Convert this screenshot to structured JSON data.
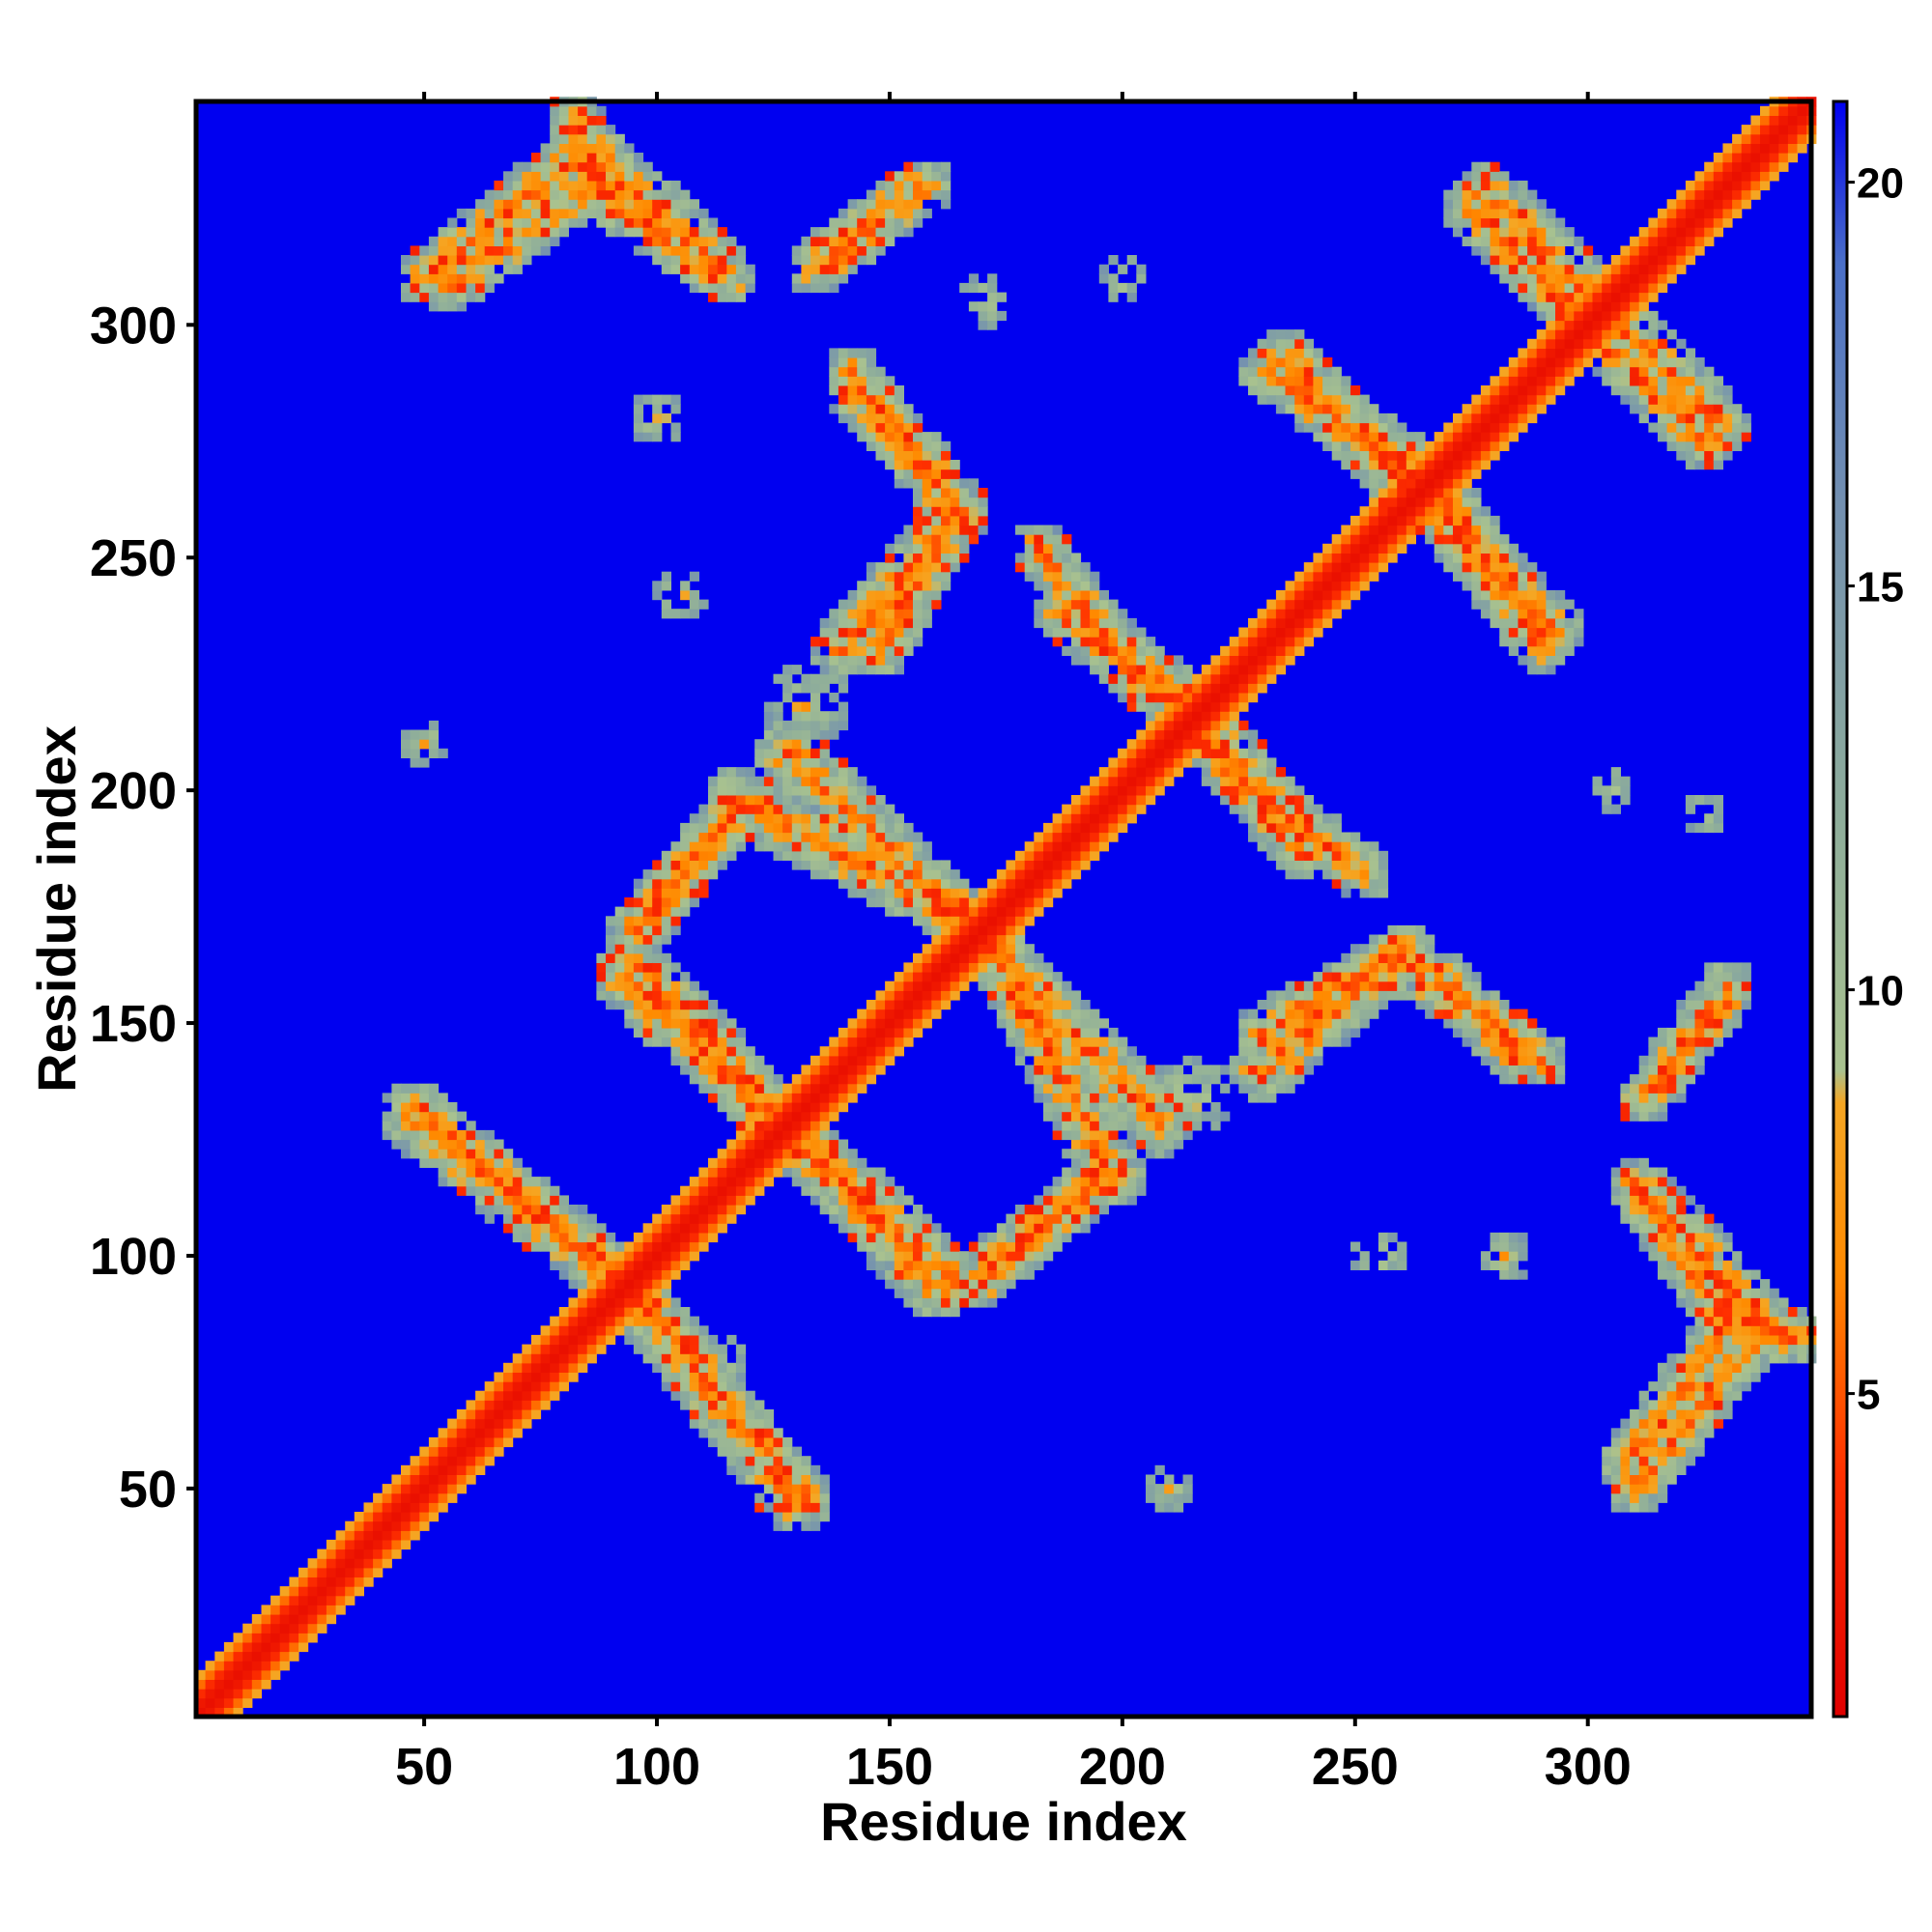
{
  "chart_data": {
    "type": "heatmap",
    "title": "",
    "xlabel": "Residue index",
    "ylabel": "Residue index",
    "xlim": [
      1,
      348
    ],
    "ylim": [
      1,
      348
    ],
    "xticks": [
      50,
      100,
      150,
      200,
      250,
      300
    ],
    "yticks": [
      50,
      100,
      150,
      200,
      250,
      300
    ],
    "colorbar": {
      "range": [
        1,
        21
      ],
      "ticks": [
        5,
        10,
        15,
        20
      ],
      "color_stops": [
        {
          "value": 1,
          "color": "#e00000"
        },
        {
          "value": 4,
          "color": "#ff3000"
        },
        {
          "value": 6.5,
          "color": "#ff8a00"
        },
        {
          "value": 8.6,
          "color": "#f5a623"
        },
        {
          "value": 9.0,
          "color": "#a9c28f"
        },
        {
          "value": 12,
          "color": "#8fae9a"
        },
        {
          "value": 16,
          "color": "#7390b0"
        },
        {
          "value": 19,
          "color": "#4a6fc8"
        },
        {
          "value": 21,
          "color": "#0000f0"
        }
      ]
    },
    "background_value": 21,
    "diagonal": {
      "core_value": 2,
      "halo_width": 7
    },
    "contact_bands": [
      {
        "start": [
          47,
          130
        ],
        "end": [
          92,
          95
        ],
        "width": 7
      },
      {
        "start": [
          93,
          94
        ],
        "end": [
          132,
          48
        ],
        "width": 6
      },
      {
        "start": [
          93,
          160
        ],
        "end": [
          132,
          124
        ],
        "width": 7
      },
      {
        "start": [
          130,
          125
        ],
        "end": [
          163,
          95
        ],
        "width": 7
      },
      {
        "start": [
          95,
          170
        ],
        "end": [
          117,
          195
        ],
        "width": 6
      },
      {
        "start": [
          117,
          198
        ],
        "end": [
          168,
          172
        ],
        "width": 7
      },
      {
        "start": [
          170,
          168
        ],
        "end": [
          208,
          128
        ],
        "width": 7
      },
      {
        "start": [
          172,
          98
        ],
        "end": [
          198,
          118
        ],
        "width": 6
      },
      {
        "start": [
          148,
          230
        ],
        "end": [
          165,
          260
        ],
        "width": 6
      },
      {
        "start": [
          143,
          285
        ],
        "end": [
          160,
          268
        ],
        "width": 6
      },
      {
        "start": [
          188,
          238
        ],
        "end": [
          212,
          220
        ],
        "width": 7
      },
      {
        "start": [
          222,
          205
        ],
        "end": [
          252,
          182
        ],
        "width": 6
      },
      {
        "start": [
          230,
          140
        ],
        "end": [
          260,
          165
        ],
        "width": 7
      },
      {
        "start": [
          262,
          162
        ],
        "end": [
          290,
          142
        ],
        "width": 6
      },
      {
        "start": [
          265,
          262
        ],
        "end": [
          292,
          235
        ],
        "width": 7
      },
      {
        "start": [
          232,
          290
        ],
        "end": [
          268,
          265
        ],
        "width": 7
      },
      {
        "start": [
          278,
          328
        ],
        "end": [
          302,
          305
        ],
        "width": 7
      },
      {
        "start": [
          300,
          300
        ],
        "end": [
          325,
          275
        ],
        "width": 6
      },
      {
        "start": [
          308,
          55
        ],
        "end": [
          330,
          85
        ],
        "width": 6
      },
      {
        "start": [
          330,
          88
        ],
        "end": [
          345,
          82
        ],
        "width": 6
      },
      {
        "start": [
          310,
          115
        ],
        "end": [
          328,
          88
        ],
        "width": 6
      },
      {
        "start": [
          315,
          135
        ],
        "end": [
          330,
          155
        ],
        "width": 5
      },
      {
        "start": [
          50,
          310
        ],
        "end": [
          83,
          337
        ],
        "width": 6
      },
      {
        "start": [
          83,
          340
        ],
        "end": [
          112,
          313
        ],
        "width": 7
      },
      {
        "start": [
          134,
          312
        ],
        "end": [
          158,
          330
        ],
        "width": 6
      }
    ],
    "contact_blobs": [
      {
        "center": [
          132,
          218
        ],
        "radius": 9
      },
      {
        "center": [
          215,
          135
        ],
        "radius": 9
      },
      {
        "center": [
          50,
          210
        ],
        "radius": 5
      },
      {
        "center": [
          210,
          50
        ],
        "radius": 5
      },
      {
        "center": [
          100,
          280
        ],
        "radius": 6
      },
      {
        "center": [
          105,
          242
        ],
        "radius": 6
      },
      {
        "center": [
          282,
          100
        ],
        "radius": 6
      },
      {
        "center": [
          255,
          100
        ],
        "radius": 6
      },
      {
        "center": [
          113,
          77
        ],
        "radius": 7
      },
      {
        "center": [
          170,
          305
        ],
        "radius": 6
      },
      {
        "center": [
          200,
          310
        ],
        "radius": 5
      },
      {
        "center": [
          305,
          200
        ],
        "radius": 5
      },
      {
        "center": [
          325,
          195
        ],
        "radius": 5
      }
    ]
  }
}
